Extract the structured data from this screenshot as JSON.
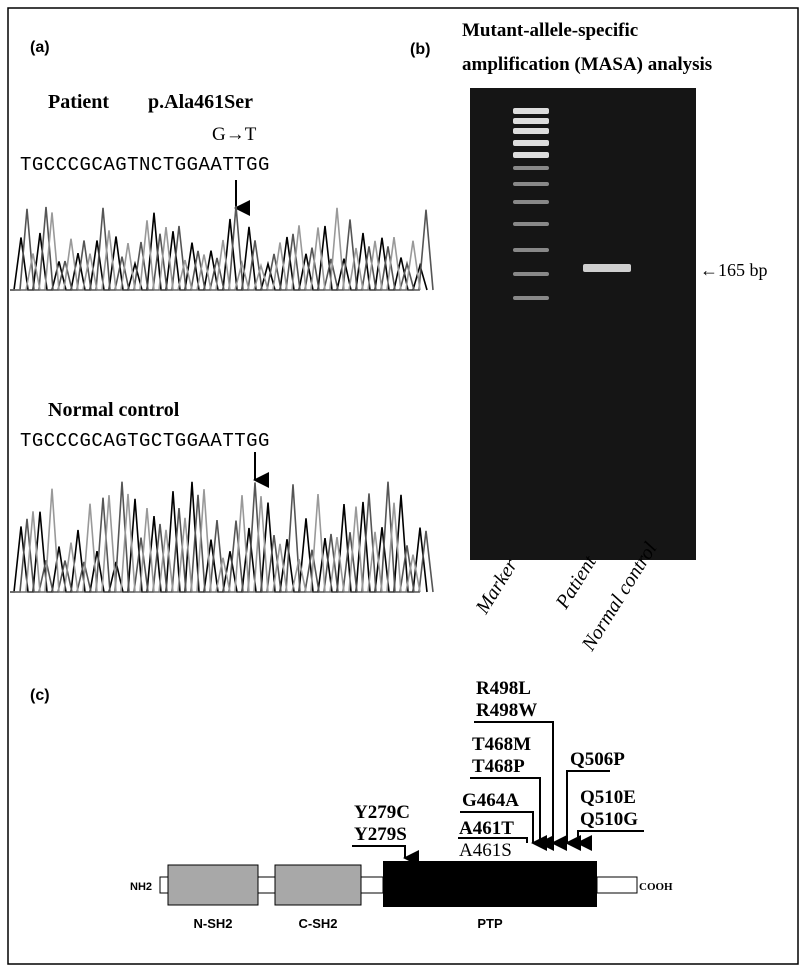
{
  "panel_a": {
    "label": "(a)",
    "patient": "Patient",
    "mutation": "p.Ala461Ser",
    "change": "G→T",
    "patient_sequence": "TGCCCGCAGTNCTGGAATTGG",
    "control": "Normal control",
    "control_sequence": "TGCCCGCAGTGCTGGAATTGG"
  },
  "panel_b": {
    "label": "(b)",
    "title_lines": [
      "Mutant-allele-specific",
      "amplification (MASA) analysis"
    ],
    "band_label": "←165 bp",
    "lanes": [
      "Marker",
      "Patient",
      "Normal control"
    ]
  },
  "panel_c": {
    "label": "(c)",
    "mutations": [
      "R498L",
      "R498W",
      "T468M",
      "T468P",
      "Q506P",
      "G464A",
      "Q510E",
      "Q510G",
      "Y279C",
      "Y279S",
      "A461T",
      "A461S"
    ],
    "domains": [
      "NH2",
      "N-SH2",
      "C-SH2",
      "PTP",
      "COOH"
    ]
  }
}
